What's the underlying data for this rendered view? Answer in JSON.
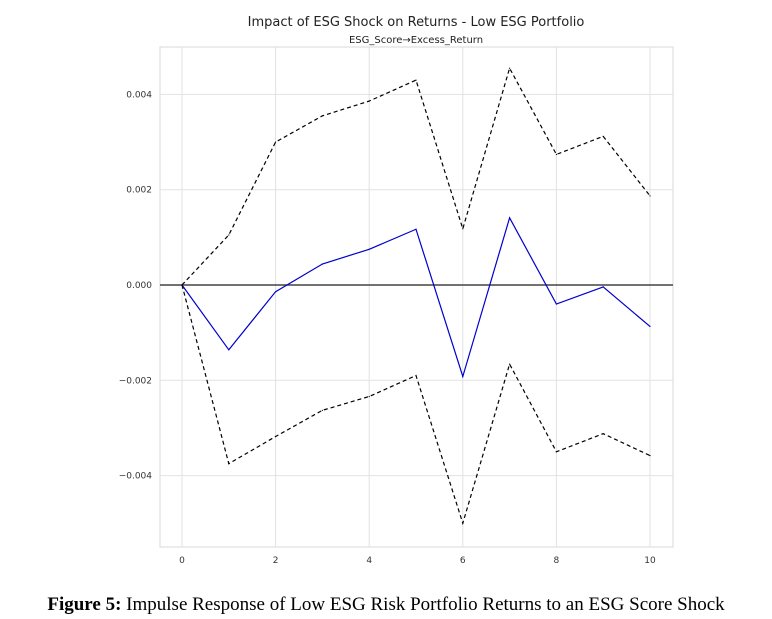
{
  "chart_data": {
    "type": "line",
    "title": "Impact of ESG Shock on Returns - Low ESG Portfolio",
    "subtitle": "ESG_Score→Excess_Return",
    "xlabel": "",
    "ylabel": "",
    "x": [
      0,
      1,
      2,
      3,
      4,
      5,
      6,
      7,
      8,
      9,
      10
    ],
    "xticks": [
      0,
      2,
      4,
      6,
      8,
      10
    ],
    "xtick_labels": [
      "0",
      "2",
      "4",
      "6",
      "8",
      "10"
    ],
    "yticks": [
      0.004,
      0.002,
      0.0,
      -0.002,
      -0.004
    ],
    "ytick_labels": [
      "0.004",
      "0.002",
      "0.000",
      "−0.002",
      "−0.004"
    ],
    "xlim": [
      -0.5,
      10.5
    ],
    "ylim": [
      -0.0055,
      0.005
    ],
    "grid": true,
    "series": [
      {
        "name": "irf",
        "style": "solid",
        "color": "#0000cc",
        "values": [
          0,
          -0.00136,
          -0.00014,
          0.00044,
          0.00075,
          0.00117,
          -0.00192,
          0.00141,
          -0.0004,
          -4e-05,
          -0.00087
        ]
      },
      {
        "name": "upper",
        "style": "dashed",
        "color": "#000000",
        "values": [
          0,
          0.00105,
          0.003,
          0.00355,
          0.00386,
          0.0043,
          0.00118,
          0.00455,
          0.00274,
          0.00312,
          0.00187
        ]
      },
      {
        "name": "lower",
        "style": "dashed",
        "color": "#000000",
        "values": [
          0,
          -0.00375,
          -0.00318,
          -0.00263,
          -0.00234,
          -0.0019,
          -0.005,
          -0.00166,
          -0.0035,
          -0.00312,
          -0.00358
        ]
      }
    ],
    "zero_line": 0
  },
  "caption": {
    "label": "Figure 5:",
    "text": " Impulse Response of Low ESG Risk Portfolio Returns to an ESG Score Shock"
  }
}
